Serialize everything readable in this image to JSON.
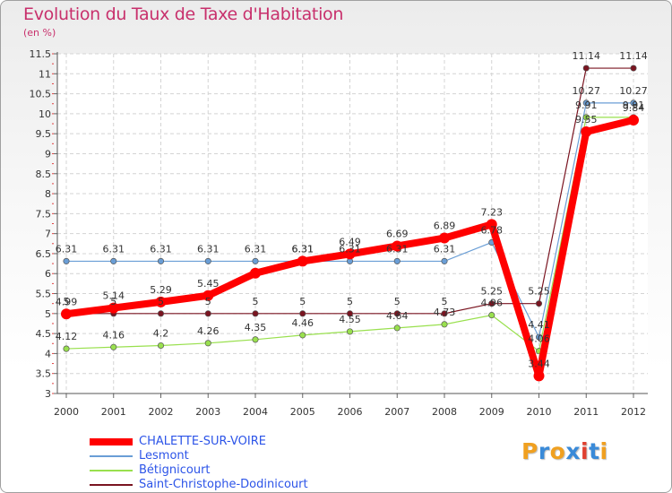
{
  "chart_data": {
    "type": "line",
    "title": "Evolution du Taux de Taxe d'Habitation",
    "ylabel": "(en %)",
    "xlabel": "",
    "categories": [
      "2000",
      "2001",
      "2002",
      "2003",
      "2004",
      "2005",
      "2006",
      "2007",
      "2008",
      "2009",
      "2010",
      "2011",
      "2012"
    ],
    "ylim": [
      3,
      11.5
    ],
    "yticks": [
      "3",
      "3.5",
      "4",
      "4.5",
      "5",
      "5.5",
      "6",
      "6.5",
      "7",
      "7.5",
      "8",
      "8.5",
      "9",
      "9.5",
      "10",
      "10.5",
      "11",
      "11.5"
    ],
    "grid": true,
    "series": [
      {
        "name": "CHALETTE-SUR-VOIRE",
        "color": "#ff0000",
        "values": [
          4.99,
          5.14,
          5.29,
          5.45,
          6.01,
          6.31,
          6.49,
          6.69,
          6.89,
          7.23,
          3.44,
          9.55,
          9.84
        ],
        "labels": [
          "4.99",
          "5.14",
          "5.29",
          "5.45",
          "",
          "6.31",
          "6.49",
          "6.69",
          "6.89",
          "7.23",
          "3.44",
          "9.55",
          "9.84"
        ]
      },
      {
        "name": "Lesmont",
        "color": "#6a9ed6",
        "values": [
          6.31,
          6.31,
          6.31,
          6.31,
          6.31,
          6.31,
          6.31,
          6.31,
          6.31,
          6.78,
          4.41,
          10.27,
          10.27
        ],
        "labels": [
          "6.31",
          "6.31",
          "6.31",
          "6.31",
          "6.31",
          "6.31",
          "6.31",
          "6.31",
          "6.31",
          "6.78",
          "4.41",
          "10.27",
          "10.27"
        ]
      },
      {
        "name": "Bétignicourt",
        "color": "#99e04e",
        "values": [
          4.12,
          4.16,
          4.2,
          4.26,
          4.35,
          4.46,
          4.55,
          4.64,
          4.73,
          4.96,
          4.06,
          9.91,
          9.91
        ],
        "labels": [
          "4.12",
          "4.16",
          "4.2",
          "4.26",
          "4.35",
          "4.46",
          "4.55",
          "4.64",
          "4.73",
          "4.96",
          "4.06",
          "9.91",
          "9.91"
        ]
      },
      {
        "name": "Saint-Christophe-Dodinicourt",
        "color": "#7a1420",
        "values": [
          5,
          5,
          5,
          5,
          5,
          5,
          5,
          5,
          5,
          5.25,
          5.25,
          11.14,
          11.14
        ],
        "labels": [
          "5",
          "5",
          "5",
          "5",
          "5",
          "5",
          "5",
          "5",
          "5",
          "5.25",
          "5.25",
          "11.14",
          "11.14"
        ]
      }
    ]
  },
  "legend": {
    "items": [
      {
        "label": "CHALETTE-SUR-VOIRE",
        "color": "#ff0000"
      },
      {
        "label": "Lesmont",
        "color": "#6a9ed6"
      },
      {
        "label": "Bétignicourt",
        "color": "#99e04e"
      },
      {
        "label": "Saint-Christophe-Dodinicourt",
        "color": "#7a1420"
      }
    ]
  },
  "logo": {
    "letters": [
      "P",
      "r",
      "o",
      "x",
      "i",
      "t",
      "i"
    ],
    "colors": [
      "#f0a020",
      "#3a8ad8",
      "#f0a020",
      "#3a8ad8",
      "#e04030",
      "#3a8ad8",
      "#f0a020"
    ]
  }
}
